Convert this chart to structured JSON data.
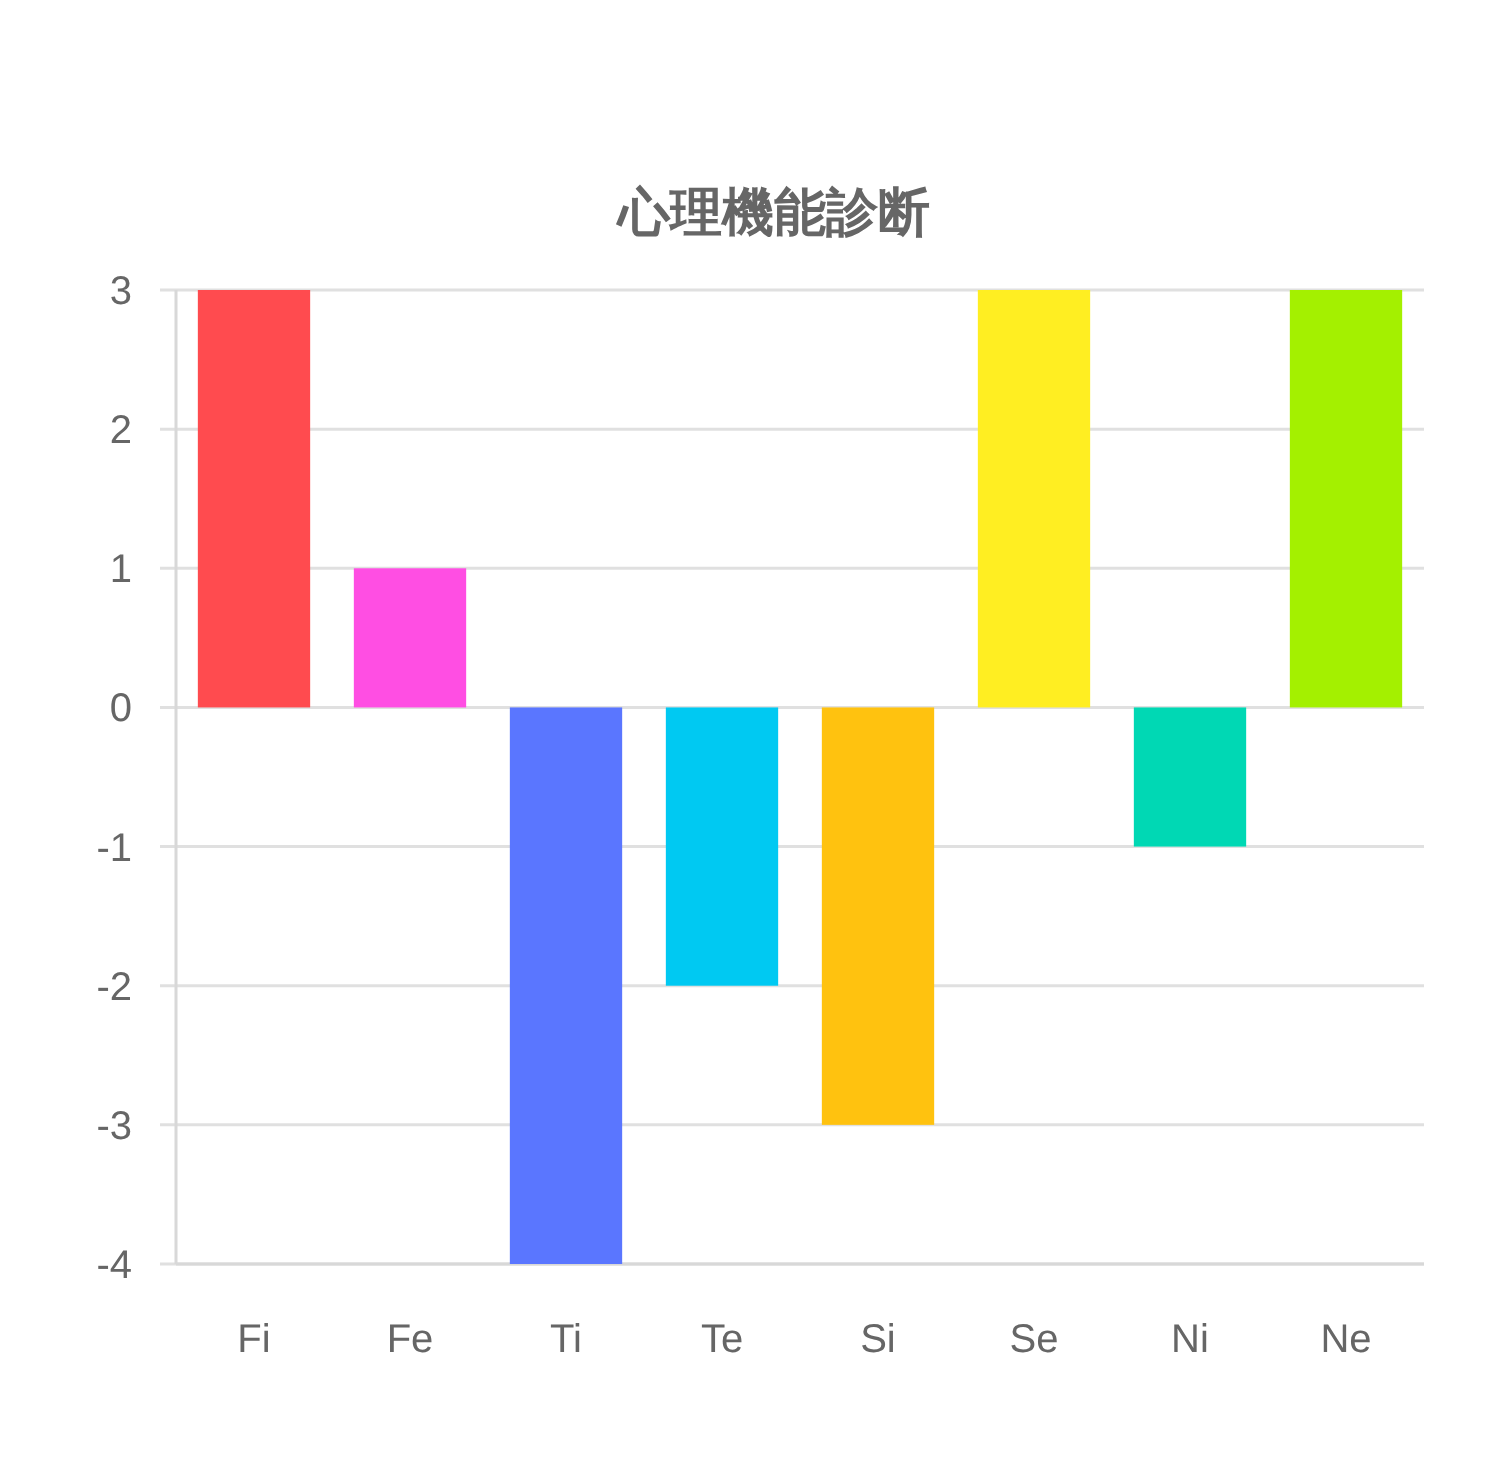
{
  "chart_data": {
    "type": "bar",
    "title": "心理機能診断",
    "categories": [
      "Fi",
      "Fe",
      "Ti",
      "Te",
      "Si",
      "Se",
      "Ni",
      "Ne"
    ],
    "values": [
      3,
      1,
      -4,
      -2,
      -3,
      3,
      -1,
      3
    ],
    "colors": [
      "#ff4b4f",
      "#ff4ee3",
      "#5a76ff",
      "#00c9f2",
      "#ffc20f",
      "#ffee22",
      "#00d8b4",
      "#a4f000"
    ],
    "ylim": [
      -4,
      3
    ],
    "yticks": [
      -4,
      -3,
      -2,
      -1,
      0,
      1,
      2,
      3
    ],
    "grid": "y"
  }
}
